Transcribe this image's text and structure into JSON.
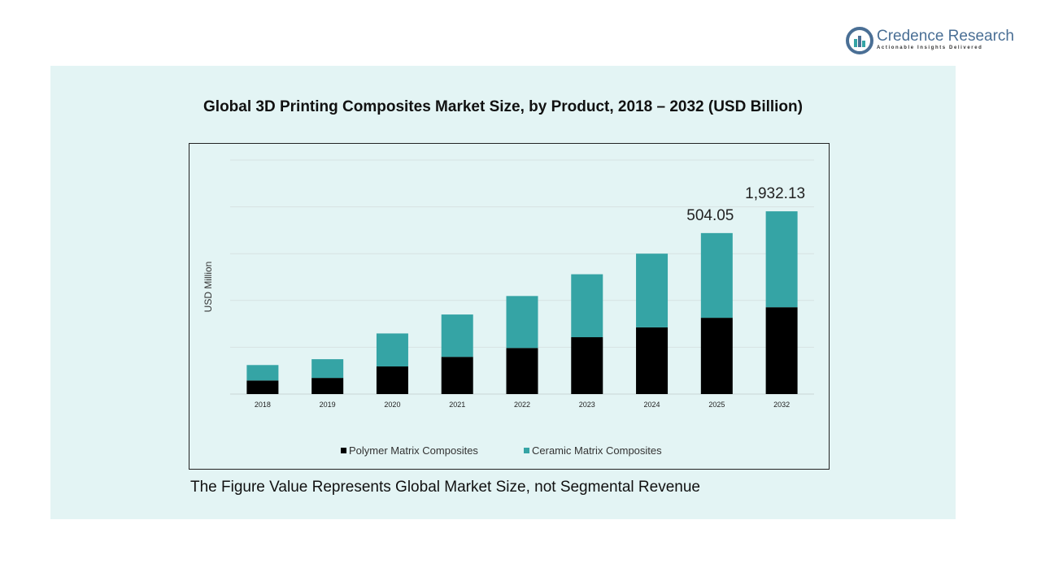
{
  "brand": {
    "name": "Credence Research",
    "tagline": "Actionable Insights Delivered",
    "color": "#4a6f95"
  },
  "footnote": "The Figure Value Represents Global Market Size, not Segmental Revenue",
  "chart_data": {
    "type": "bar",
    "stacked": true,
    "title": "Global 3D Printing Composites  Market Size, by Product, 2018 – 2032 (USD Billion)",
    "xlabel": "",
    "ylabel": "USD Million",
    "categories": [
      "2018",
      "2019",
      "2020",
      "2021",
      "2022",
      "2023",
      "2024",
      "2025",
      "2032"
    ],
    "series": [
      {
        "name": "Polymer Matrix Composites",
        "color": "#000000",
        "values": [
          58,
          69,
          118,
          159,
          197,
          243,
          285,
          326,
          371
        ]
      },
      {
        "name": "Ceramic Matrix Composites",
        "color": "#35a4a5",
        "values": [
          66,
          80,
          141,
          181,
          222,
          269,
          315,
          362,
          410
        ]
      }
    ],
    "data_labels": [
      {
        "category": "2025",
        "text": "504.05"
      },
      {
        "category": "2032",
        "text": "1,932.13"
      }
    ],
    "ylim": [
      0,
      1000
    ],
    "grid": true,
    "legend": "bottom"
  }
}
